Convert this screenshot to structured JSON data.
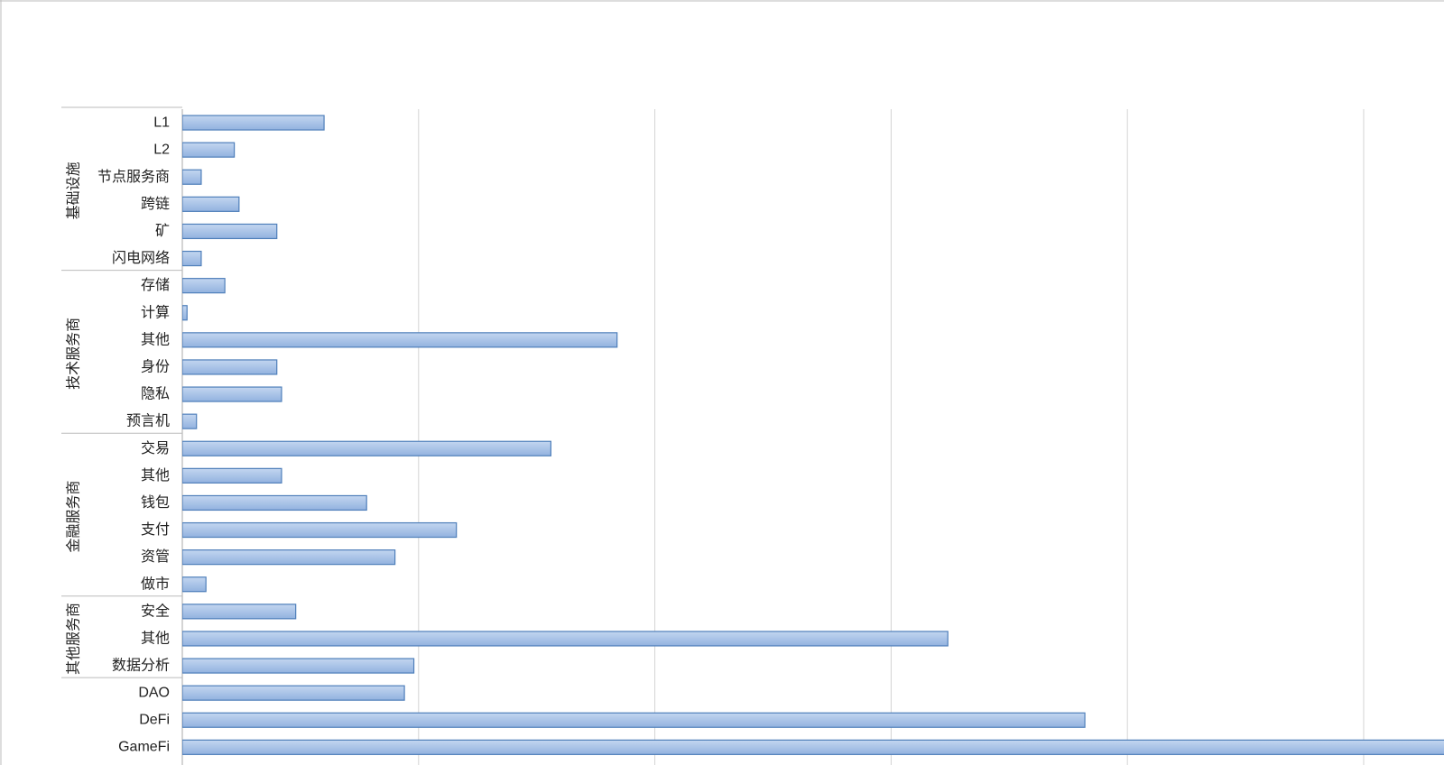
{
  "chart_data": {
    "type": "bar",
    "orientation": "horizontal",
    "color": "#a7c2e6",
    "edge_color": "#4f7fba",
    "xlim": [
      0,
      5.34
    ],
    "xticks": [
      0,
      1,
      2,
      3,
      4,
      5
    ],
    "grid": true,
    "tick_labels": false,
    "groups": [
      {
        "name": "基础设施",
        "categories": [
          "L1",
          "L2",
          "节点服务商",
          "跨链",
          "矿",
          "闪电网络"
        ],
        "values": [
          0.6,
          0.22,
          0.08,
          0.24,
          0.4,
          0.08
        ]
      },
      {
        "name": "技术服务商",
        "categories": [
          "存储",
          "计算",
          "其他",
          "身份",
          "隐私",
          "预言机"
        ],
        "values": [
          0.18,
          0.02,
          1.84,
          0.4,
          0.42,
          0.06
        ]
      },
      {
        "name": "金融服务商",
        "categories": [
          "交易",
          "其他",
          "钱包",
          "支付",
          "资管",
          "做市"
        ],
        "values": [
          1.56,
          0.42,
          0.78,
          1.16,
          0.9,
          0.1
        ]
      },
      {
        "name": "其他服务商",
        "categories": [
          "安全",
          "其他",
          "数据分析"
        ],
        "values": [
          0.48,
          3.24,
          0.98
        ]
      },
      {
        "name": null,
        "categories": [
          "DAO",
          "DeFi",
          "GameFi"
        ],
        "values": [
          0.94,
          3.82,
          5.4
        ]
      }
    ]
  }
}
